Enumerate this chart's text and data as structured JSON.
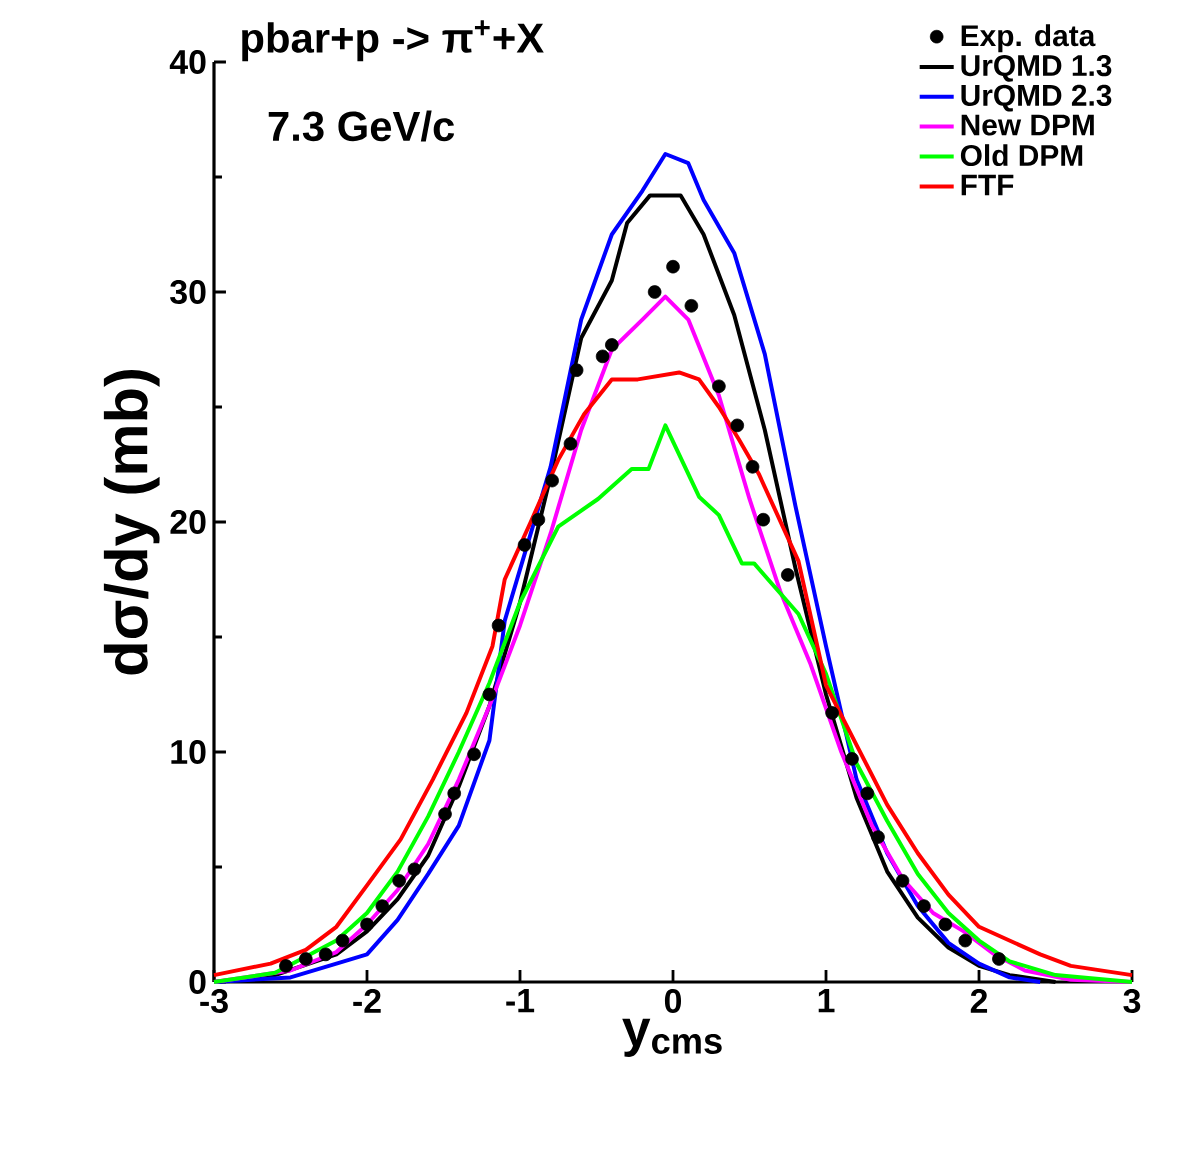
{
  "chart_data": {
    "type": "line",
    "title": "pbar+p -> π$^{+}$+X",
    "annotations": [
      "7.3 GeV/c"
    ],
    "xlabel": "y$_{cms}$",
    "ylabel": "dσ/dy (mb)",
    "xlim": [
      -3,
      3
    ],
    "ylim": [
      0,
      40
    ],
    "xticks": [
      -3,
      -2,
      -1,
      0,
      1,
      2,
      3
    ],
    "yticks": [
      0,
      10,
      20,
      30,
      40
    ],
    "grid": false,
    "legend": "top right",
    "line_style": "solid",
    "series": [
      {
        "name": "Exp. data",
        "type": "scatter",
        "color": "#000000",
        "x": [
          -2.53,
          -2.4,
          -2.27,
          -2.16,
          -2.0,
          -1.9,
          -1.79,
          -1.69,
          -1.49,
          -1.43,
          -1.3,
          -1.2,
          -1.14,
          -0.97,
          -0.88,
          -0.79,
          -0.67,
          -0.63,
          -0.46,
          -0.4,
          -0.12,
          0.0,
          0.12,
          0.3,
          0.42,
          0.52,
          0.59,
          0.75,
          1.04,
          1.17,
          1.27,
          1.34,
          1.5,
          1.64,
          1.78,
          1.91,
          2.13
        ],
        "values": [
          0.7,
          1.0,
          1.2,
          1.8,
          2.5,
          3.3,
          4.4,
          4.9,
          7.3,
          8.2,
          9.9,
          12.5,
          15.5,
          19,
          20.1,
          21.8,
          23.4,
          26.6,
          27.2,
          27.7,
          30,
          31.1,
          29.4,
          25.9,
          24.2,
          22.4,
          20.1,
          17.7,
          11.7,
          9.7,
          8.2,
          6.3,
          4.4,
          3.3,
          2.5,
          1.8,
          1.0
        ]
      },
      {
        "name": "UrQMD 1.3",
        "color": "#000000",
        "x": [
          -3,
          -2.6,
          -2.2,
          -2.0,
          -1.8,
          -1.6,
          -1.4,
          -1.2,
          -1.0,
          -0.8,
          -0.6,
          -0.4,
          -0.3,
          -0.15,
          0.05,
          0.2,
          0.4,
          0.6,
          0.8,
          1.0,
          1.2,
          1.4,
          1.6,
          1.8,
          2.0,
          2.2,
          2.5
        ],
        "values": [
          0,
          0.3,
          1.2,
          2.2,
          3.6,
          5.5,
          8.5,
          12,
          16.5,
          22,
          28,
          30.5,
          33,
          34.2,
          34.2,
          32.5,
          29,
          24,
          18,
          12.5,
          8,
          4.8,
          2.8,
          1.5,
          0.7,
          0.3,
          0
        ]
      },
      {
        "name": "UrQMD 2.3",
        "color": "#0000ff",
        "x": [
          -3,
          -2.5,
          -2.2,
          -2.0,
          -1.8,
          -1.6,
          -1.4,
          -1.2,
          -1.1,
          -0.8,
          -0.6,
          -0.4,
          -0.2,
          -0.05,
          0.1,
          0.2,
          0.4,
          0.6,
          0.8,
          1.0,
          1.2,
          1.4,
          1.6,
          1.8,
          2.0,
          2.2,
          2.4
        ],
        "values": [
          0,
          0.2,
          0.8,
          1.2,
          2.7,
          4.7,
          6.8,
          10.5,
          15.7,
          22.4,
          28.8,
          32.5,
          34.4,
          36,
          35.6,
          34,
          31.7,
          27.3,
          20.7,
          14.6,
          8.8,
          5.6,
          3.3,
          1.7,
          0.8,
          0.2,
          0
        ]
      },
      {
        "name": "New DPM",
        "color": "#ff00ff",
        "x": [
          -3,
          -2.5,
          -2.2,
          -2.0,
          -1.8,
          -1.6,
          -1.4,
          -1.2,
          -1.0,
          -0.8,
          -0.6,
          -0.4,
          -0.2,
          -0.05,
          0.1,
          0.3,
          0.5,
          0.7,
          0.9,
          1.1,
          1.3,
          1.5,
          1.7,
          1.9,
          2.1,
          2.3,
          2.6,
          3
        ],
        "values": [
          0,
          0.5,
          1.3,
          2.5,
          4,
          6,
          8.8,
          12,
          15.5,
          19.5,
          24,
          27.5,
          28.8,
          29.8,
          28.8,
          25.5,
          21,
          17,
          13.8,
          10,
          6.8,
          4.5,
          3,
          2.2,
          1.2,
          0.5,
          0.1,
          0
        ]
      },
      {
        "name": "Old DPM",
        "color": "#00ff00",
        "x": [
          -3,
          -2.6,
          -2.2,
          -2.0,
          -1.8,
          -1.6,
          -1.4,
          -1.2,
          -1.0,
          -0.75,
          -0.49,
          -0.27,
          -0.16,
          -0.05,
          0.17,
          0.3,
          0.45,
          0.53,
          0.82,
          1.0,
          1.2,
          1.4,
          1.6,
          1.8,
          2.0,
          2.2,
          2.5,
          3
        ],
        "values": [
          0,
          0.4,
          1.8,
          3,
          4.8,
          7.2,
          10,
          13,
          16.5,
          19.8,
          21,
          22.3,
          22.3,
          24.2,
          21.1,
          20.3,
          18.2,
          18.2,
          16,
          13.4,
          9.5,
          7,
          4.7,
          3,
          1.8,
          0.9,
          0.3,
          0
        ]
      },
      {
        "name": "FTF",
        "color": "#ff0000",
        "x": [
          -3,
          -2.63,
          -2.4,
          -2.2,
          -2.0,
          -1.78,
          -1.57,
          -1.35,
          -1.18,
          -1.1,
          -0.93,
          -0.75,
          -0.58,
          -0.4,
          -0.23,
          0.04,
          0.17,
          0.3,
          0.43,
          0.56,
          0.82,
          1.0,
          1.2,
          1.4,
          1.6,
          1.8,
          2.0,
          2.4,
          2.6,
          3
        ],
        "values": [
          0.3,
          0.8,
          1.4,
          2.4,
          4.2,
          6.2,
          8.8,
          11.7,
          14.6,
          17.5,
          20,
          22.7,
          24.7,
          26.2,
          26.2,
          26.5,
          26.2,
          25,
          23.6,
          22.1,
          18.3,
          12.9,
          10.3,
          7.7,
          5.6,
          3.8,
          2.4,
          1.2,
          0.7,
          0.3
        ]
      }
    ]
  }
}
